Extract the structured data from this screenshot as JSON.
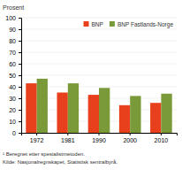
{
  "chart_data": {
    "type": "bar",
    "y_label": "Prosent",
    "categories": [
      "1972",
      "1981",
      "1990",
      "2000",
      "2010"
    ],
    "series": [
      {
        "name": "BNP",
        "color": "#E8401C",
        "values": [
          43,
          35,
          33,
          24,
          26
        ]
      },
      {
        "name": "BNP Fastlands-Norge",
        "color": "#7A9A3A",
        "values": [
          47,
          43,
          39,
          32,
          34
        ]
      }
    ],
    "ylim": [
      0,
      100
    ],
    "yticks": [
      0,
      10,
      20,
      30,
      40,
      50,
      60,
      70,
      80,
      90,
      100
    ],
    "grid": true,
    "legend": "upper right",
    "annotations": [
      "¹ Beregnet etter spesialistmetoden.",
      "Kilde: Nasjonalregnskapet, Statistisk sentralbyrå."
    ]
  }
}
